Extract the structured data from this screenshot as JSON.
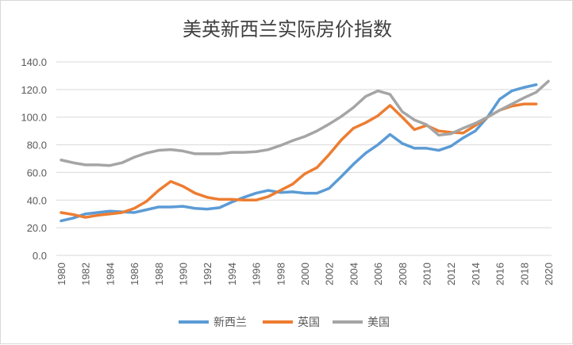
{
  "chart_data": {
    "type": "line",
    "title": "美英新西兰实际房价指数",
    "xlabel": "",
    "ylabel": "",
    "ylim": [
      0,
      140
    ],
    "yticks": [
      "0.0",
      "20.0",
      "40.0",
      "60.0",
      "80.0",
      "100.0",
      "120.0",
      "140.0"
    ],
    "xlim": [
      1980,
      2020
    ],
    "xticks": [
      "1980",
      "1982",
      "1984",
      "1986",
      "1988",
      "1990",
      "1992",
      "1994",
      "1996",
      "1998",
      "2000",
      "2002",
      "2004",
      "2006",
      "2008",
      "2010",
      "2012",
      "2014",
      "2016",
      "2018",
      "2020"
    ],
    "grid": true,
    "legend_position": "bottom",
    "series": [
      {
        "name": "新西兰",
        "color": "#5b9bd5",
        "start_year": 1980,
        "values": [
          25,
          27,
          30,
          31,
          32,
          31.5,
          31,
          33,
          35,
          35,
          35.5,
          34,
          33.5,
          34.5,
          38.5,
          42,
          45,
          47,
          45.5,
          46,
          45,
          45,
          48.5,
          57,
          66,
          74,
          80,
          87.5,
          81,
          77.5,
          77.5,
          76,
          79,
          85,
          90,
          100,
          113,
          119,
          121.5,
          123.5
        ]
      },
      {
        "name": "英国",
        "color": "#ed7d31",
        "start_year": 1980,
        "values": [
          31,
          29.5,
          27.5,
          29,
          30,
          31,
          34,
          39,
          47,
          53.5,
          50,
          45,
          42,
          40.5,
          40.5,
          40,
          40,
          42.5,
          47,
          51.5,
          59,
          63.5,
          73,
          83.5,
          92,
          96,
          101,
          108.5,
          100,
          91,
          94,
          90,
          89,
          88.5,
          94,
          100,
          105,
          108,
          109.5,
          109.5
        ]
      },
      {
        "name": "美国",
        "color": "#a5a5a5",
        "start_year": 1980,
        "values": [
          69,
          67,
          65.5,
          65.5,
          65,
          67,
          71,
          74,
          76,
          76.5,
          75.5,
          73.5,
          73.5,
          73.5,
          74.5,
          74.5,
          75,
          76.5,
          79.5,
          83,
          86,
          90,
          95,
          100.5,
          107,
          115,
          119,
          116.5,
          104,
          98,
          94.5,
          87,
          88,
          92,
          95.5,
          100,
          105,
          109.5,
          114,
          118,
          126
        ]
      }
    ]
  }
}
